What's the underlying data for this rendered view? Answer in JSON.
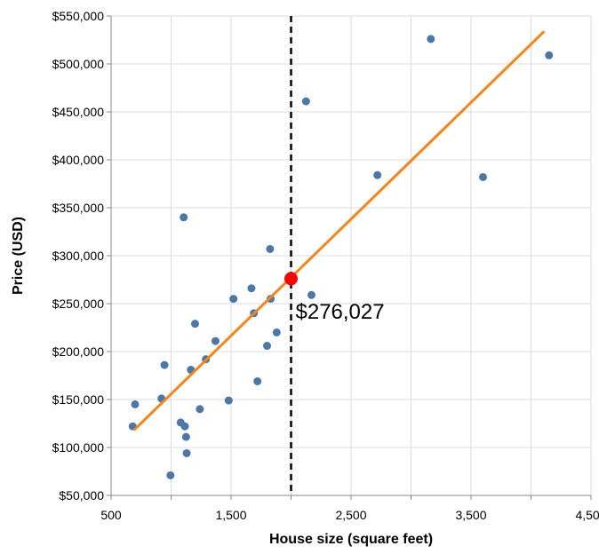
{
  "chart_data": {
    "type": "scatter",
    "xlabel": "House size (square feet)",
    "ylabel": "Price (USD)",
    "xlim": [
      500,
      4500
    ],
    "ylim": [
      50000,
      550000
    ],
    "x_ticks": [
      500,
      1000,
      1500,
      2000,
      2500,
      3000,
      3500,
      4000,
      4500
    ],
    "x_tick_labels": [
      "500",
      "",
      "1,500",
      "",
      "2,500",
      "",
      "3,500",
      "",
      "4,500"
    ],
    "y_ticks": [
      50000,
      100000,
      150000,
      200000,
      250000,
      300000,
      350000,
      400000,
      450000,
      500000,
      550000
    ],
    "y_tick_labels": [
      "$50,000",
      "$100,000",
      "$150,000",
      "$200,000",
      "$250,000",
      "$300,000",
      "$350,000",
      "$400,000",
      "$450,000",
      "$500,000",
      "$550,000"
    ],
    "grid": true,
    "points": [
      {
        "x": 680,
        "y": 122000
      },
      {
        "x": 700,
        "y": 145000
      },
      {
        "x": 920,
        "y": 151000
      },
      {
        "x": 945,
        "y": 186000
      },
      {
        "x": 995,
        "y": 71000
      },
      {
        "x": 1080,
        "y": 126000
      },
      {
        "x": 1105,
        "y": 340000
      },
      {
        "x": 1115,
        "y": 122000
      },
      {
        "x": 1125,
        "y": 111000
      },
      {
        "x": 1130,
        "y": 94000
      },
      {
        "x": 1165,
        "y": 181000
      },
      {
        "x": 1200,
        "y": 229000
      },
      {
        "x": 1240,
        "y": 140000
      },
      {
        "x": 1290,
        "y": 192000
      },
      {
        "x": 1370,
        "y": 211000
      },
      {
        "x": 1480,
        "y": 149000
      },
      {
        "x": 1520,
        "y": 255000
      },
      {
        "x": 1670,
        "y": 266000
      },
      {
        "x": 1690,
        "y": 240000
      },
      {
        "x": 1720,
        "y": 169000
      },
      {
        "x": 1800,
        "y": 206000
      },
      {
        "x": 1825,
        "y": 307000
      },
      {
        "x": 1830,
        "y": 255000
      },
      {
        "x": 1880,
        "y": 220000
      },
      {
        "x": 2125,
        "y": 461000
      },
      {
        "x": 2170,
        "y": 259000
      },
      {
        "x": 2720,
        "y": 384000
      },
      {
        "x": 3165,
        "y": 526000
      },
      {
        "x": 3600,
        "y": 382000
      },
      {
        "x": 4150,
        "y": 509000
      }
    ],
    "point_color": "#4c78a8",
    "fit_line": {
      "x": [
        690,
        4110
      ],
      "y": [
        118000,
        534000
      ],
      "color": "#f58518"
    },
    "prediction": {
      "x": 2000,
      "y": 276027,
      "label": "$276,027",
      "color": "#ff0000"
    },
    "rule_x": 2000
  }
}
